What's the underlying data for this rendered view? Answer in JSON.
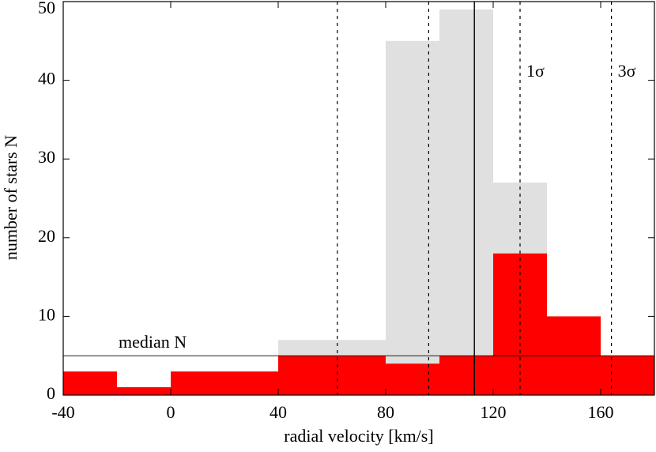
{
  "chart_data": {
    "type": "histogram",
    "x_label": "radial velocity [km/s]",
    "y_label": "number of stars N",
    "bins": [
      -40,
      -20,
      0,
      20,
      40,
      60,
      80,
      100,
      120,
      140,
      160,
      180
    ],
    "series": [
      {
        "color": "#e0e0e0",
        "values": [
          3,
          1,
          3,
          3,
          7,
          7,
          45,
          49,
          27,
          10,
          5
        ]
      },
      {
        "color": "#ff0000",
        "values": [
          3,
          1,
          3,
          3,
          5,
          5,
          4,
          5,
          18,
          10,
          5
        ]
      }
    ],
    "xlim": [
      -40,
      180
    ],
    "ylim": [
      0,
      50
    ],
    "xticks": [
      -40,
      0,
      40,
      80,
      120,
      160
    ],
    "yticks": [
      0,
      10,
      20,
      30,
      40,
      50
    ],
    "vlines": [
      {
        "value": 113,
        "style": "solid"
      },
      {
        "value": 96,
        "style": "dashed"
      },
      {
        "value": 130,
        "style": "dashed",
        "label": "1σ"
      },
      {
        "value": 62,
        "style": "dashed"
      },
      {
        "value": 164,
        "style": "dashed",
        "label": "3σ"
      }
    ],
    "hlines": [
      {
        "value": 5,
        "label": "median N"
      }
    ]
  }
}
